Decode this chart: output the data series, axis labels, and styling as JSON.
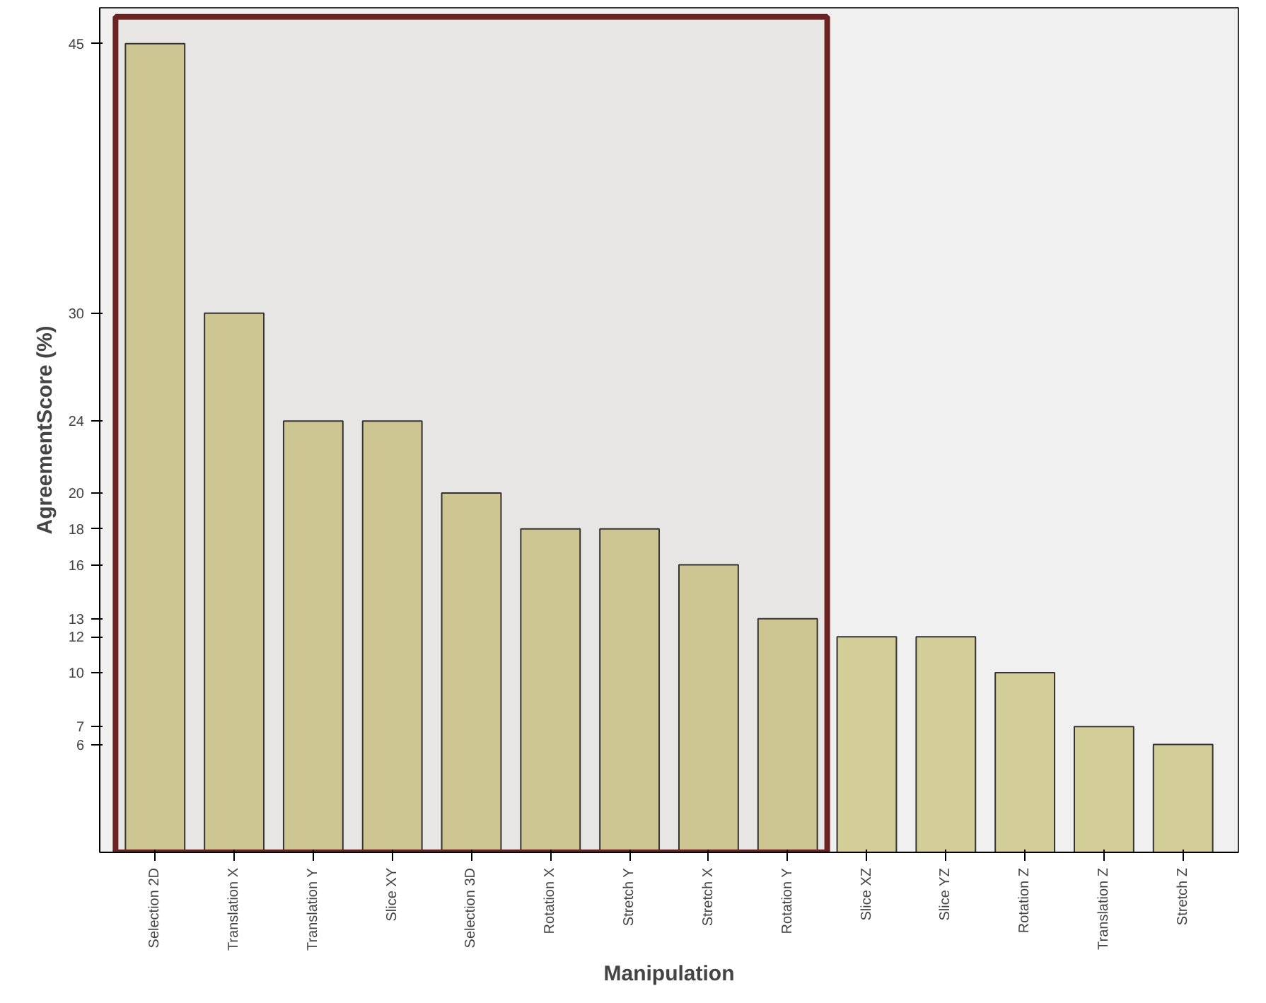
{
  "chart_data": {
    "type": "bar",
    "xlabel": "Manipulation",
    "ylabel": "AgreementScore (%)",
    "categories": [
      "Selection 2D",
      "Translation X",
      "Translation Y",
      "Slice XY",
      "Selection 3D",
      "Rotation X",
      "Stretch Y",
      "Stretch X",
      "Rotation Y",
      "Slice XZ",
      "Slice YZ",
      "Rotation Z",
      "Translation Z",
      "Stretch Z"
    ],
    "values": [
      45,
      30,
      24,
      24,
      20,
      18,
      18,
      16,
      13,
      12,
      12,
      10,
      7,
      6
    ],
    "color": "#d3ce98",
    "ylim": [
      0,
      47
    ],
    "yticks": [
      6,
      7,
      10,
      12,
      13,
      16,
      18,
      20,
      24,
      30,
      45
    ],
    "grid": false,
    "bands": [
      {
        "axis": "x",
        "from": "Selection 2D",
        "to": "Rotation Y",
        "color": "#6b2222"
      }
    ]
  }
}
